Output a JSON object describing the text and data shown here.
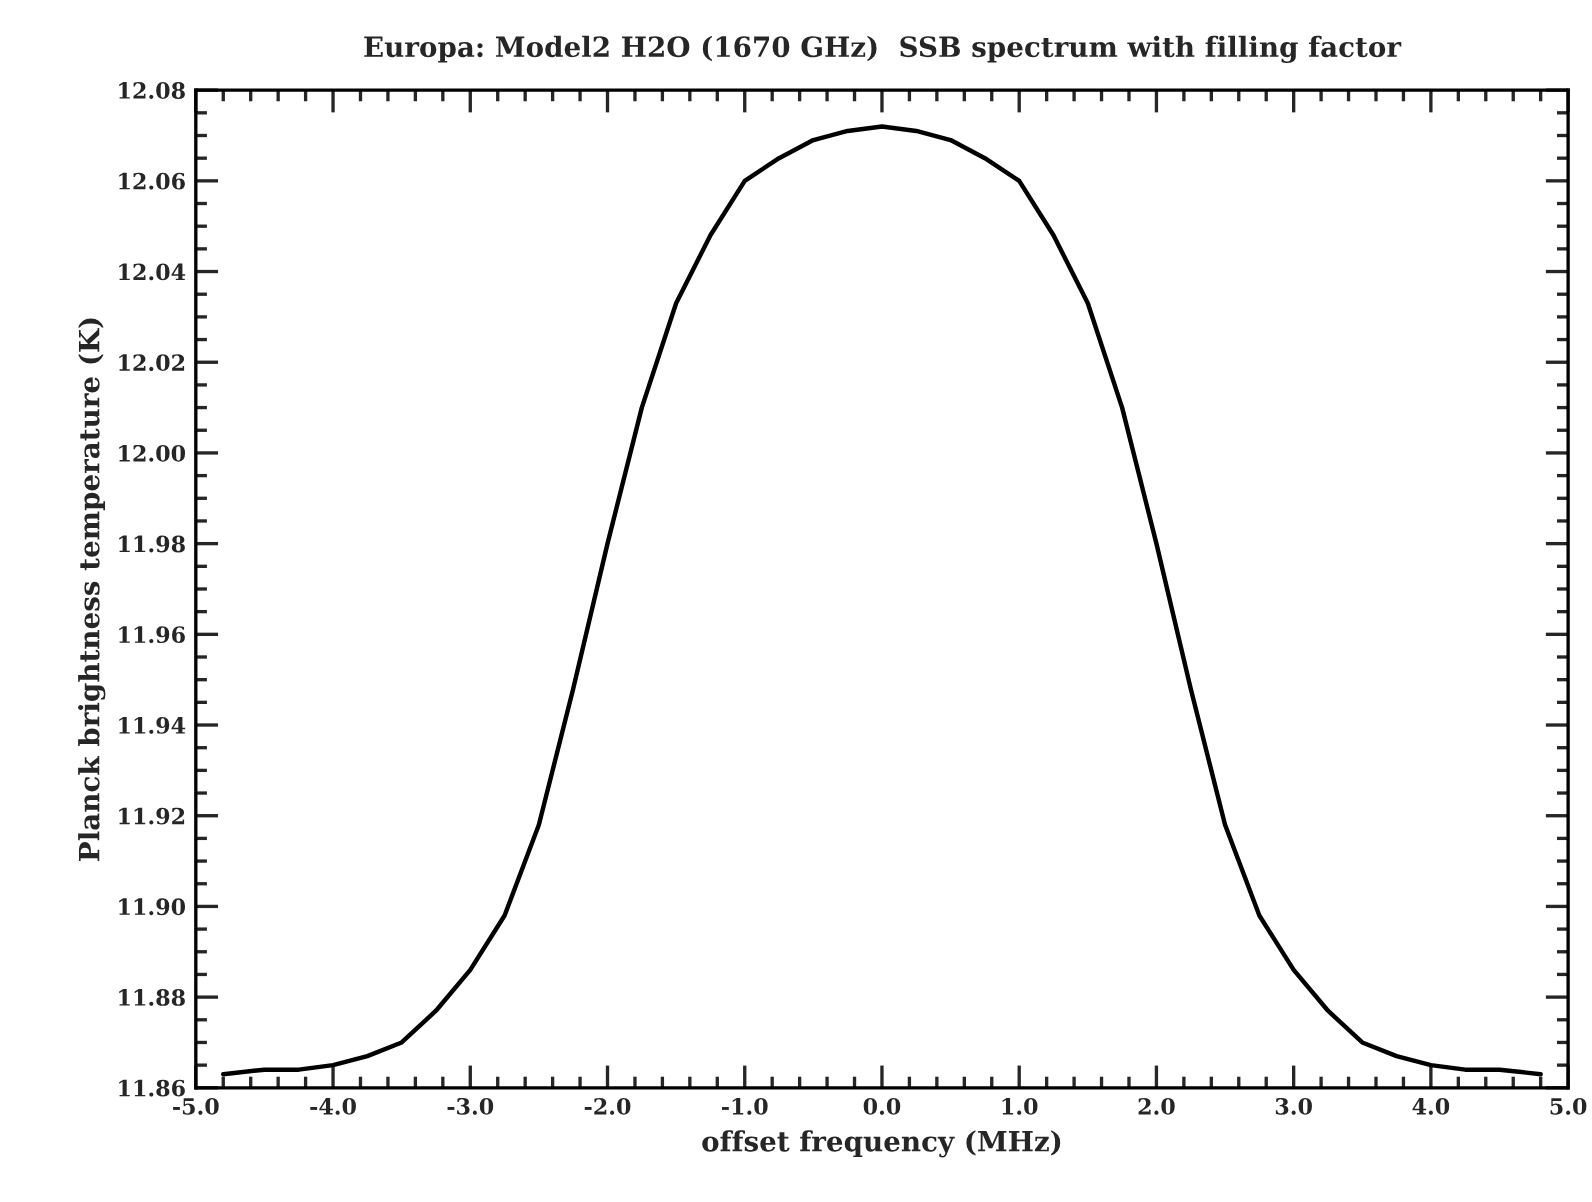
{
  "chart_data": {
    "type": "line",
    "title": "Europa: Model2 H2O (1670 GHz)  SSB spectrum with filling factor",
    "xlabel": "offset frequency (MHz)",
    "ylabel": "Planck brightness temperature (K)",
    "x": [
      -4.8,
      -4.5,
      -4.25,
      -4.0,
      -3.75,
      -3.5,
      -3.25,
      -3.0,
      -2.75,
      -2.5,
      -2.25,
      -2.0,
      -1.75,
      -1.5,
      -1.25,
      -1.0,
      -0.75,
      -0.5,
      -0.25,
      0.0,
      0.25,
      0.5,
      0.75,
      1.0,
      1.25,
      1.5,
      1.75,
      2.0,
      2.25,
      2.5,
      2.75,
      3.0,
      3.25,
      3.5,
      3.75,
      4.0,
      4.25,
      4.5,
      4.8
    ],
    "series": [
      {
        "color": "#000000",
        "values": [
          11.863,
          11.864,
          11.864,
          11.865,
          11.867,
          11.87,
          11.877,
          11.886,
          11.898,
          11.918,
          11.948,
          11.98,
          12.01,
          12.033,
          12.048,
          12.06,
          12.065,
          12.069,
          12.071,
          12.072,
          12.071,
          12.069,
          12.065,
          12.06,
          12.048,
          12.033,
          12.01,
          11.98,
          11.948,
          11.918,
          11.898,
          11.886,
          11.877,
          11.87,
          11.867,
          11.865,
          11.864,
          11.864,
          11.863
        ]
      }
    ],
    "xlim": [
      -5.0,
      5.0
    ],
    "ylim": [
      11.86,
      12.08
    ],
    "xticks": [
      {
        "value": -5,
        "label": "-5.0"
      },
      {
        "value": -4,
        "label": "-4.0"
      },
      {
        "value": -3,
        "label": "-3.0"
      },
      {
        "value": -2,
        "label": "-2.0"
      },
      {
        "value": -1,
        "label": "-1.0"
      },
      {
        "value": 0,
        "label": "0.0"
      },
      {
        "value": 1,
        "label": "1.0"
      },
      {
        "value": 2,
        "label": "2.0"
      },
      {
        "value": 3,
        "label": "3.0"
      },
      {
        "value": 4,
        "label": "4.0"
      },
      {
        "value": 5,
        "label": "5.0"
      }
    ],
    "yticks": [
      11.86,
      11.88,
      {
        "value": 11.9,
        "label": "11.90"
      },
      11.92,
      11.94,
      11.96,
      11.98,
      {
        "value": 12.0,
        "label": "12.00"
      },
      12.02,
      12.04,
      12.06,
      12.08
    ],
    "grid": false,
    "legend": false,
    "marker": "none",
    "line_style": "solid"
  }
}
